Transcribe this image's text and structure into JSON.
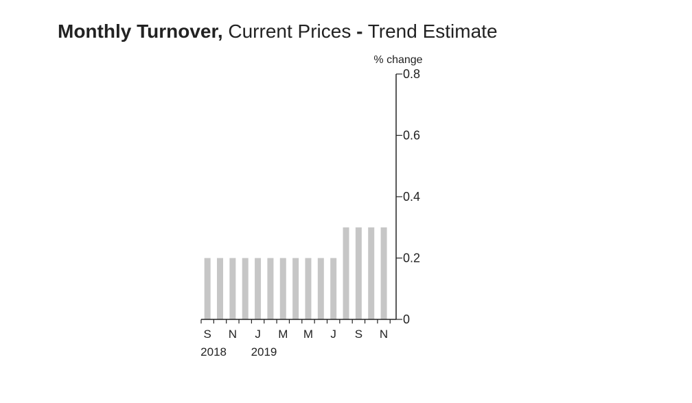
{
  "title": {
    "part1": "Monthly Turnover,",
    "part2": " Current Prices ",
    "part3": "-",
    "part4": " Trend Estimate"
  },
  "colors": {
    "bar": "#c6c6c6",
    "axis": "#222222",
    "background": "#ffffff"
  },
  "chart_data": {
    "type": "bar",
    "title": "Monthly Turnover, Current Prices - Trend Estimate",
    "ylabel": "% change",
    "xlabel": "",
    "ylim": [
      0,
      0.8
    ],
    "yticks": [
      0,
      0.2,
      0.4,
      0.6,
      0.8
    ],
    "ytick_labels": [
      "0",
      "0.2",
      "0.4",
      "0.6",
      "0.8"
    ],
    "y_axis_side": "right",
    "grid": false,
    "categories": [
      "Sep 2018",
      "Oct 2018",
      "Nov 2018",
      "Dec 2018",
      "Jan 2019",
      "Feb 2019",
      "Mar 2019",
      "Apr 2019",
      "May 2019",
      "Jun 2019",
      "Jul 2019",
      "Aug 2019",
      "Sep 2019",
      "Oct 2019",
      "Nov 2019"
    ],
    "values": [
      0.2,
      0.2,
      0.2,
      0.2,
      0.2,
      0.2,
      0.2,
      0.2,
      0.2,
      0.2,
      0.2,
      0.3,
      0.3,
      0.3,
      0.3
    ],
    "tick_labels": [
      "S",
      "",
      "N",
      "",
      "J",
      "",
      "M",
      "",
      "M",
      "",
      "J",
      "",
      "S",
      "",
      "N"
    ],
    "year_labels": [
      "2018",
      "",
      "",
      "",
      "2019",
      "",
      "",
      "",
      "",
      "",
      "",
      "",
      "",
      "",
      ""
    ]
  }
}
